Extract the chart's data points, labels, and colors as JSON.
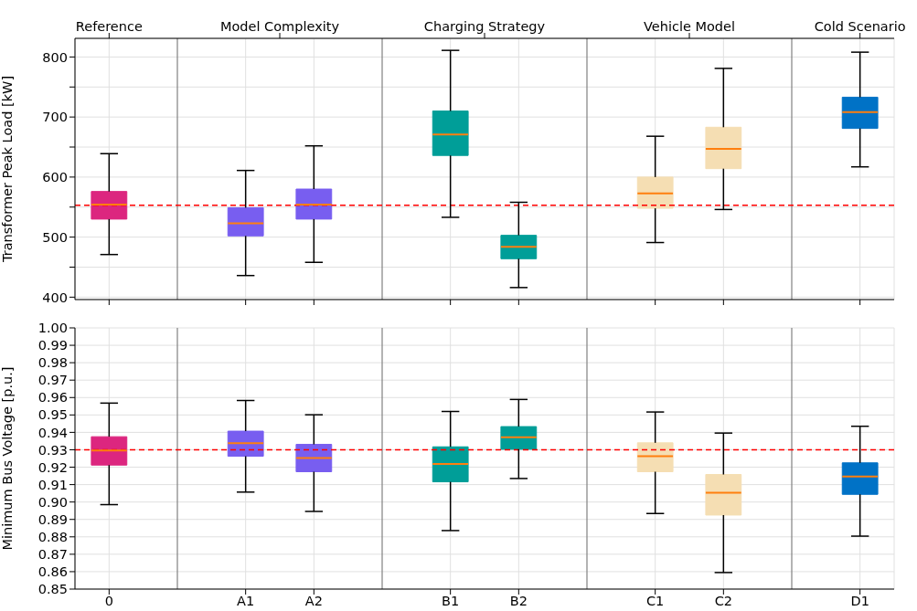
{
  "chart_data": [
    {
      "type": "box",
      "ylabel": "Transformer Peak Load [kW]",
      "annotations": [
        "Reference",
        "Model Complexity",
        "Charging Strategy",
        "Vehicle Model",
        "Cold Scenario"
      ],
      "categories": [
        null,
        null,
        null,
        null,
        null,
        null,
        null,
        null,
        null,
        null,
        null,
        null
      ],
      "ylim": [
        396,
        831
      ],
      "yticks": [
        400,
        {
          "value": 450,
          "label": null
        },
        500,
        {
          "value": 550,
          "label": null
        },
        600,
        {
          "value": 650,
          "label": null
        },
        700,
        {
          "value": 750,
          "label": null
        },
        800
      ],
      "boxes": [
        {
          "low": 471,
          "q1": 530,
          "median": 554,
          "q3": 576,
          "high": 639
        },
        null,
        {
          "low": 436,
          "q1": 502,
          "median": 523,
          "q3": 549,
          "high": 611
        },
        {
          "low": 458,
          "q1": 530,
          "median": 554,
          "q3": 580,
          "high": 652
        },
        null,
        {
          "low": 533,
          "q1": 636,
          "median": 671,
          "q3": 710,
          "high": 811
        },
        {
          "low": 416,
          "q1": 464,
          "median": 484,
          "q3": 503,
          "high": 558
        },
        null,
        {
          "low": 491,
          "q1": 548,
          "median": 573,
          "q3": 600,
          "high": 668
        },
        {
          "low": 546,
          "q1": 614,
          "median": 647,
          "q3": 683,
          "high": 781
        },
        null,
        {
          "low": 617,
          "q1": 681,
          "median": 708,
          "q3": 733,
          "high": 808
        }
      ],
      "colors": [
        "#dc267f",
        null,
        "#785ef0",
        "#785ef0",
        null,
        "#009e98",
        "#009e98",
        null,
        "#f5deb3",
        "#f5deb3",
        null,
        "#0072c6"
      ],
      "ref_lines": [
        {
          "axis": "y",
          "value": 553,
          "color": "#ff0000",
          "line_style": "dashed"
        }
      ],
      "grid": true
    },
    {
      "type": "box",
      "ylabel": "Minimum Bus Voltage [p.u.]",
      "categories": [
        "0",
        null,
        "A1",
        "A2",
        null,
        "B1",
        "B2",
        null,
        "C1",
        "C2",
        null,
        "D1"
      ],
      "ylim": [
        0.85,
        1.0
      ],
      "yticks": [
        0.85,
        0.86,
        0.87,
        0.88,
        0.89,
        {
          "value": 0.9,
          "label": "0.90"
        },
        0.91,
        0.92,
        0.93,
        0.94,
        0.95,
        0.96,
        0.97,
        0.98,
        0.99,
        {
          "value": 1.0,
          "label": "1.00"
        }
      ],
      "boxes": [
        {
          "low": 0.8985,
          "q1": 0.9212,
          "median": 0.9296,
          "q3": 0.9375,
          "high": 0.9568
        },
        null,
        {
          "low": 0.9057,
          "q1": 0.9263,
          "median": 0.9338,
          "q3": 0.9407,
          "high": 0.9583
        },
        {
          "low": 0.8946,
          "q1": 0.9174,
          "median": 0.9253,
          "q3": 0.9331,
          "high": 0.9501
        },
        null,
        {
          "low": 0.8836,
          "q1": 0.9116,
          "median": 0.9219,
          "q3": 0.9317,
          "high": 0.952
        },
        {
          "low": 0.9135,
          "q1": 0.9303,
          "median": 0.9372,
          "q3": 0.9433,
          "high": 0.9589
        },
        null,
        {
          "low": 0.8934,
          "q1": 0.9174,
          "median": 0.9263,
          "q3": 0.934,
          "high": 0.9517
        },
        {
          "low": 0.8595,
          "q1": 0.8925,
          "median": 0.9053,
          "q3": 0.9158,
          "high": 0.9396
        },
        null,
        {
          "low": 0.8804,
          "q1": 0.9044,
          "median": 0.9146,
          "q3": 0.9225,
          "high": 0.9435
        }
      ],
      "colors": [
        "#dc267f",
        null,
        "#785ef0",
        "#785ef0",
        null,
        "#009e98",
        "#009e98",
        null,
        "#f5deb3",
        "#f5deb3",
        null,
        "#0072c6"
      ],
      "ref_lines": [
        {
          "axis": "y",
          "value": 0.93,
          "color": "#ff0000",
          "line_style": "dashed"
        }
      ],
      "grid": true
    }
  ]
}
